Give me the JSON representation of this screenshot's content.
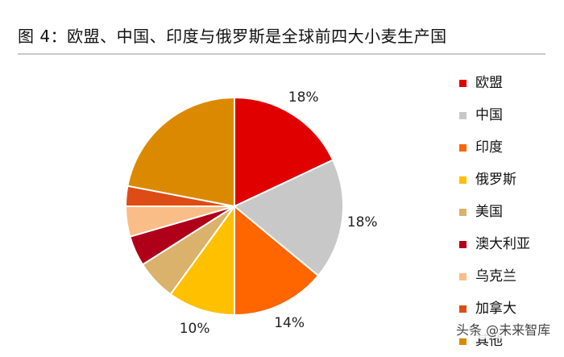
{
  "figure": {
    "title": "图 4：欧盟、中国、印度与俄罗斯是全球前四大小麦生产国",
    "watermark": "头条 @未来智库"
  },
  "chart_data": {
    "type": "pie",
    "title": "图 4：欧盟、中国、印度与俄罗斯是全球前四大小麦生产国",
    "legend_position": "right",
    "start": "12 o'clock",
    "direction": "clockwise",
    "slices": [
      {
        "label": "欧盟",
        "value": 18,
        "value_label": "18%",
        "color": "#e00000"
      },
      {
        "label": "中国",
        "value": 18,
        "value_label": "18%",
        "color": "#c8c8c8"
      },
      {
        "label": "印度",
        "value": 14,
        "value_label": "14%",
        "color": "#ff6600"
      },
      {
        "label": "俄罗斯",
        "value": 10,
        "value_label": "10%",
        "color": "#ffc000"
      },
      {
        "label": "美国",
        "value": 6,
        "value_label": "",
        "color": "#dab26b"
      },
      {
        "label": "澳大利亚",
        "value": 4.5,
        "value_label": "",
        "color": "#b00019"
      },
      {
        "label": "乌克兰",
        "value": 4.5,
        "value_label": "",
        "color": "#f9be87"
      },
      {
        "label": "加拿大",
        "value": 3,
        "value_label": "",
        "color": "#de4c16"
      },
      {
        "label": "其他",
        "value": 22,
        "value_label": "",
        "color": "#db8a00"
      }
    ]
  }
}
